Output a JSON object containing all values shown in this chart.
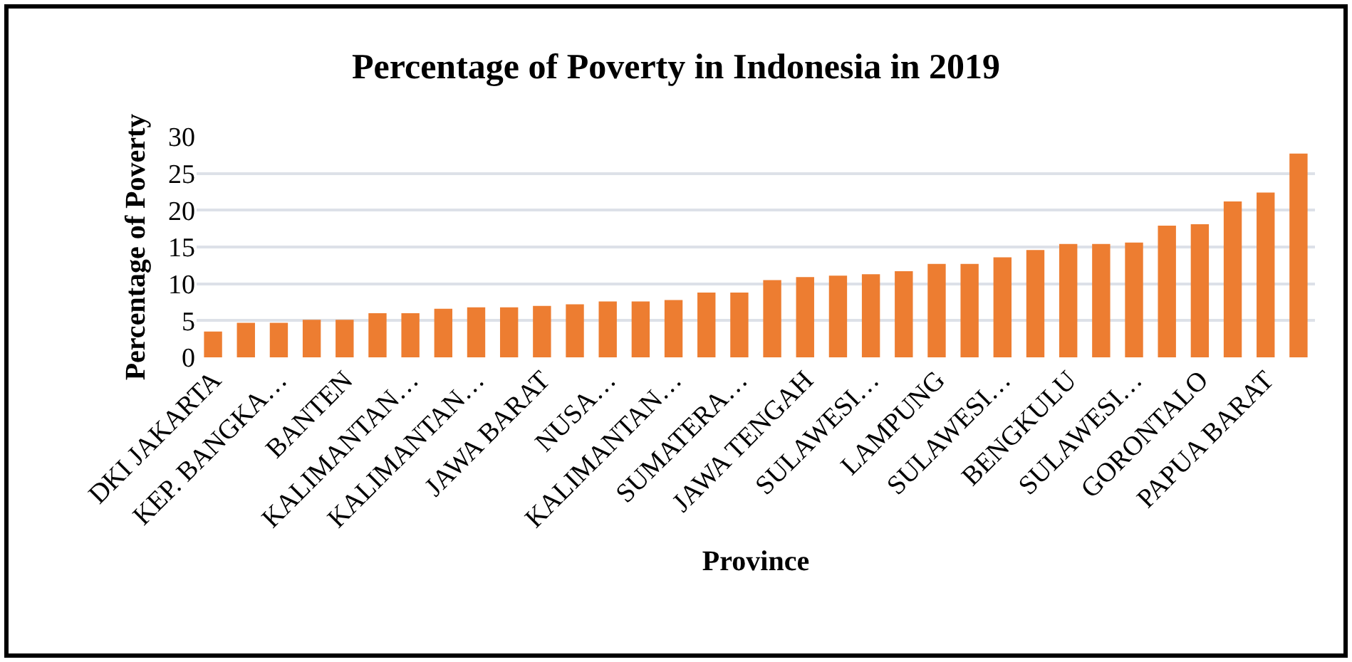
{
  "chart_data": {
    "type": "bar",
    "title": "Percentage of Poverty in Indonesia in 2019",
    "xlabel": "Province",
    "ylabel": "Percentage of Poverty",
    "categories": [
      "DKI JAKARTA",
      null,
      "KEP. BANGKA…",
      null,
      "BANTEN",
      null,
      "KALIMANTAN…",
      null,
      "KALIMANTAN…",
      null,
      "JAWA BARAT",
      null,
      "NUSA…",
      null,
      "KALIMANTAN…",
      null,
      "SUMATERA…",
      null,
      "JAWA TENGAH",
      null,
      "SULAWESI…",
      null,
      "LAMPUNG",
      null,
      "SULAWESI…",
      null,
      "BENGKULU",
      null,
      "SULAWESI…",
      null,
      "GORONTALO",
      null,
      "PAPUA BARAT",
      null
    ],
    "values": [
      3.5,
      4.7,
      4.7,
      5.1,
      5.1,
      6.0,
      6.0,
      6.6,
      6.8,
      6.8,
      7.0,
      7.2,
      7.6,
      7.6,
      7.8,
      8.8,
      8.8,
      10.5,
      10.9,
      11.1,
      11.3,
      11.7,
      12.7,
      12.7,
      13.6,
      14.6,
      15.4,
      15.4,
      15.6,
      17.9,
      18.1,
      21.2,
      22.4,
      27.7
    ],
    "color": "#ed7d31",
    "ylim": [
      0,
      30
    ],
    "yticks": [
      0,
      5,
      10,
      15,
      20,
      25,
      30
    ],
    "grid": "y"
  }
}
